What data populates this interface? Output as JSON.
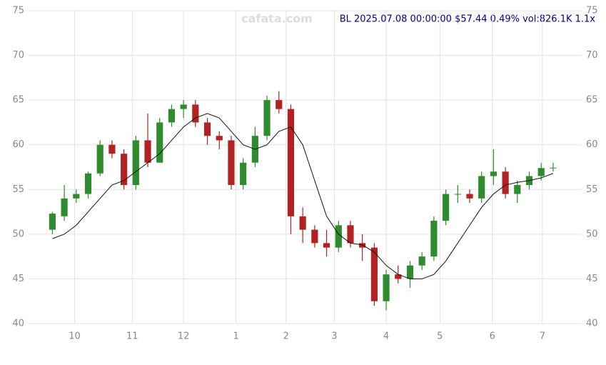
{
  "chart_data": {
    "type": "candlestick",
    "title": "BL 2025.07.08 00:00:00 $57.44 0.49% vol:826.1K 1.1x",
    "watermark": "cafata.com",
    "up_color": "#2e8b2e",
    "down_color": "#b22222",
    "ma_color": "#111111",
    "grid": true,
    "x": [
      0,
      1,
      2,
      3,
      4,
      5,
      6,
      7,
      8,
      9,
      10,
      11,
      12,
      13,
      14,
      15,
      16,
      17,
      18,
      19,
      20,
      21,
      22,
      23,
      24,
      25,
      26,
      27,
      28,
      29,
      30,
      31,
      32,
      33,
      34,
      35,
      36,
      37,
      38,
      39,
      40,
      41,
      42
    ],
    "ohlc": [
      [
        50.5,
        52.5,
        50,
        52.3
      ],
      [
        52,
        55.5,
        51.5,
        54
      ],
      [
        54,
        55,
        53.5,
        54.5
      ],
      [
        54.5,
        57,
        54,
        56.8
      ],
      [
        56.8,
        60.5,
        56.5,
        60
      ],
      [
        60,
        60.5,
        58.5,
        59
      ],
      [
        59,
        59.5,
        55,
        55.5
      ],
      [
        55.5,
        61,
        55,
        60.5
      ],
      [
        60.5,
        63.5,
        57.5,
        58
      ],
      [
        58,
        63,
        58,
        62.5
      ],
      [
        62.5,
        64.5,
        62,
        64
      ],
      [
        64,
        65,
        63,
        64.5
      ],
      [
        64.5,
        65,
        62,
        62.5
      ],
      [
        62.5,
        63,
        60,
        61
      ],
      [
        61,
        61.5,
        59.5,
        60.5
      ],
      [
        60.5,
        61,
        55,
        55.5
      ],
      [
        55.5,
        58.5,
        55,
        58
      ],
      [
        58,
        62,
        57.5,
        61
      ],
      [
        61,
        65.5,
        60.5,
        65
      ],
      [
        65,
        66,
        63.5,
        64
      ],
      [
        64,
        64.5,
        50,
        52
      ],
      [
        52,
        53,
        49,
        50.5
      ],
      [
        50.5,
        51,
        48.5,
        49
      ],
      [
        49,
        50.5,
        47.5,
        48.5
      ],
      [
        48.5,
        51.5,
        48,
        51
      ],
      [
        51,
        51.5,
        48.5,
        49
      ],
      [
        49,
        50,
        47,
        48.5
      ],
      [
        48.5,
        49,
        42,
        42.5
      ],
      [
        42.5,
        46,
        41.5,
        45.5
      ],
      [
        45.5,
        46.5,
        44.5,
        45
      ],
      [
        45,
        47,
        44,
        46.5
      ],
      [
        46.5,
        48,
        46,
        47.5
      ],
      [
        47.5,
        52,
        47,
        51.5
      ],
      [
        51.5,
        55,
        51,
        54.5
      ],
      [
        54.5,
        55.5,
        53.5,
        54.5
      ],
      [
        54.5,
        55,
        53.5,
        54
      ],
      [
        54,
        57,
        53.5,
        56.5
      ],
      [
        56.5,
        59.5,
        55.5,
        57
      ],
      [
        57,
        57.5,
        54,
        54.5
      ],
      [
        54.5,
        56,
        53.5,
        55.5
      ],
      [
        55.5,
        57,
        55,
        56.5
      ],
      [
        56.5,
        58,
        56,
        57.4
      ],
      [
        57.4,
        58,
        57,
        57.44
      ]
    ],
    "ma": [
      49.5,
      50,
      51,
      52.5,
      54,
      55.5,
      56,
      57,
      58,
      59,
      60.5,
      62,
      63,
      63.5,
      63,
      61.5,
      60,
      59.5,
      60,
      61.5,
      62,
      60,
      56,
      52,
      50,
      49,
      48.8,
      48,
      46.5,
      45.5,
      45,
      45,
      45.5,
      47,
      49,
      51,
      53,
      54.5,
      55.5,
      55.8,
      56,
      56.3,
      56.8
    ],
    "xlim": [
      -2,
      44.4
    ],
    "ylim": [
      40,
      75
    ],
    "yticks": [
      40,
      45,
      50,
      55,
      60,
      65,
      70,
      75
    ],
    "xticks": [
      {
        "value": 1.86,
        "label": "10"
      },
      {
        "value": 6.7,
        "label": "11"
      },
      {
        "value": 11,
        "label": "12"
      },
      {
        "value": 15.4,
        "label": "1"
      },
      {
        "value": 19.6,
        "label": "2"
      },
      {
        "value": 23.65,
        "label": "3"
      },
      {
        "value": 28,
        "label": "4"
      },
      {
        "value": 32.5,
        "label": "5"
      },
      {
        "value": 36.9,
        "label": "6"
      },
      {
        "value": 41.1,
        "label": "7"
      }
    ]
  }
}
